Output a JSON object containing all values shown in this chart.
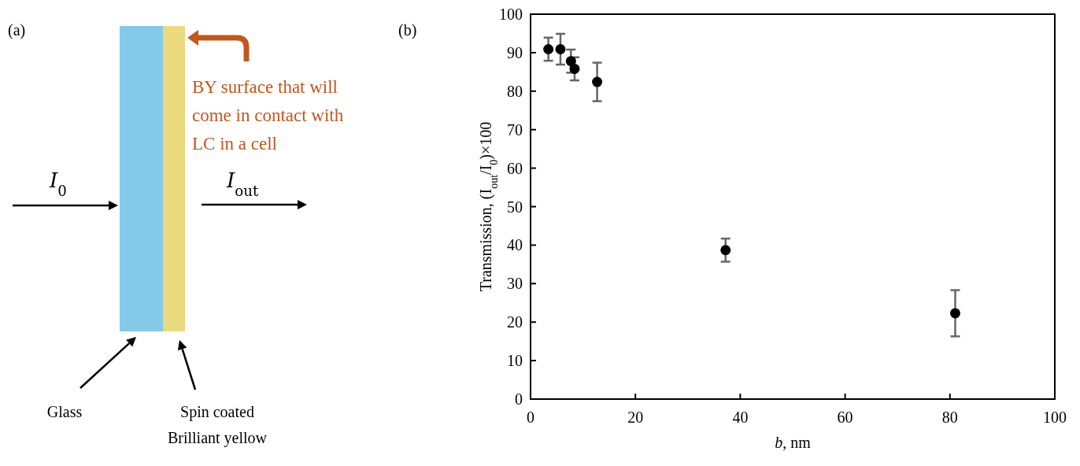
{
  "chart_data": [
    {
      "type": "other",
      "title": "(a)",
      "annotations": [
        "I$_{0}$",
        "I$_{out}$",
        "BY surface that will come in contact with LC in a cell",
        "Glass",
        "Spin coated Brilliant yellow"
      ]
    },
    {
      "type": "scatter",
      "title": "(b)",
      "xlabel": "b, nm",
      "ylabel": "Transmission, (I$_{out}$/I$_{0}$)×100",
      "x": [
        3.4,
        5.7,
        7.7,
        8.4,
        12.7,
        37.2,
        81
      ],
      "series": [
        {
          "color": "#000000",
          "values": [
            90.9,
            90.9,
            87.8,
            85.8,
            82.4,
            38.7,
            22.3
          ],
          "errors": [
            3,
            4,
            3,
            3,
            5,
            3,
            6
          ]
        }
      ],
      "xlim": [
        0,
        100
      ],
      "xticks": [
        0,
        20,
        40,
        60,
        80,
        100
      ],
      "ylim": [
        0,
        100
      ],
      "yticks": [
        0,
        10,
        20,
        30,
        40,
        50,
        60,
        70,
        80,
        90,
        100
      ],
      "marker": "circle",
      "grid": false
    }
  ]
}
